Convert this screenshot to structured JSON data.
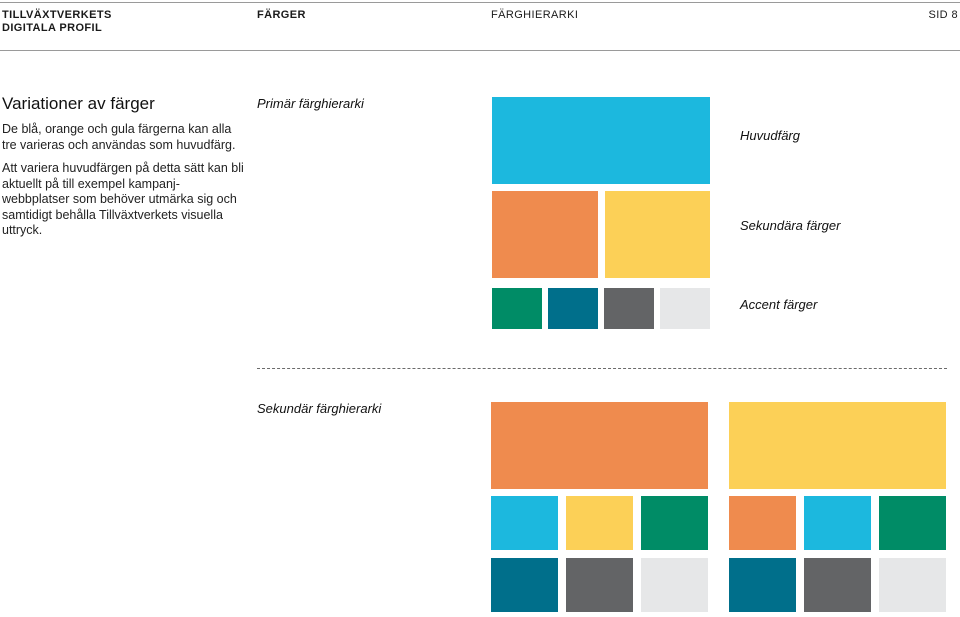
{
  "header": {
    "brand_line1": "TILLVÄXTVERKETS",
    "brand_line2": "DIGITALA PROFIL",
    "section": "FÄRGER",
    "subsection": "FÄRGHIERARKI",
    "page": "SID 8"
  },
  "intro": {
    "title": "Variationer av färger",
    "paragraph1": "De blå, orange och gula färgerna kan alla tre varieras och användas som huvudfärg.",
    "paragraph2": "Att variera huvudfärgen på detta sätt kan bli aktuellt på till exempel kampanj-webbplatser som behöver utmärka sig och samtidigt behålla Tillväxtverkets visuella uttryck."
  },
  "primary": {
    "heading": "Primär färghierarki",
    "label_main": "Huvudfärg",
    "label_secondary": "Sekundära färger",
    "label_accent": "Accent färger"
  },
  "secondary": {
    "heading": "Sekundär färghierarki"
  },
  "colors": {
    "blue": "#1cb8de",
    "orange": "#ef8b4e",
    "yellow": "#fcd057",
    "green": "#008c66",
    "petrol": "#006f8b",
    "gray": "#636466",
    "lightgray": "#e6e7e8"
  }
}
